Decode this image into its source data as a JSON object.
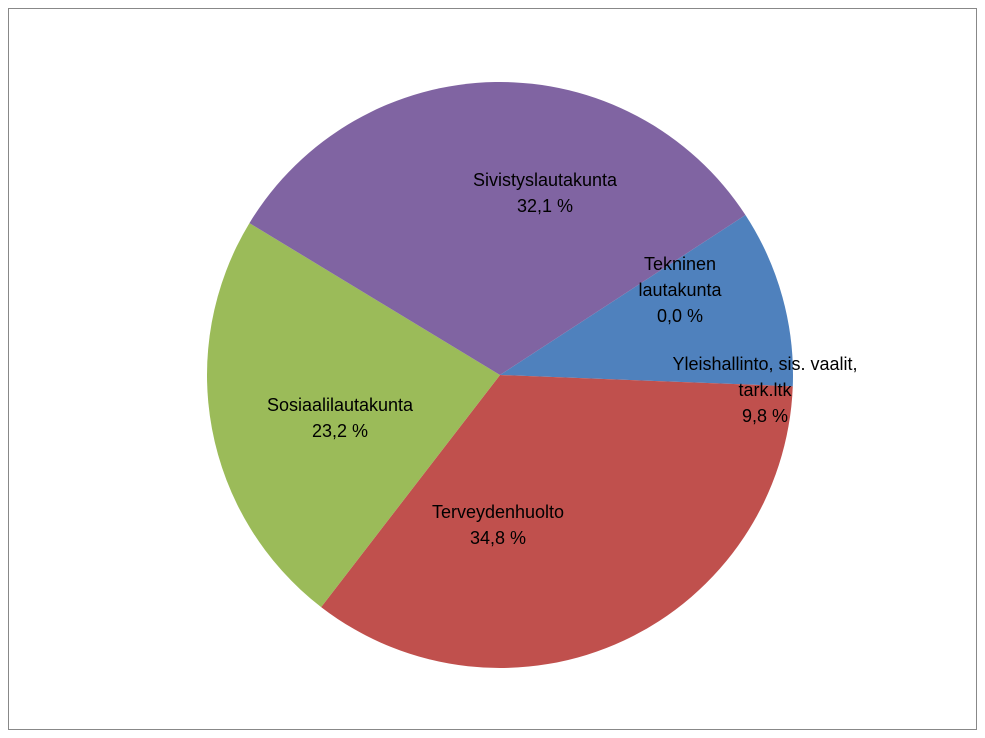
{
  "chart_data": {
    "type": "pie",
    "categories": [
      "Yleishallinto, sis. vaalit, tark.ltk",
      "Terveydenhuolto",
      "Sosiaalilautakunta",
      "Sivistyslautakunta",
      "Tekninen lautakunta"
    ],
    "values": [
      9.8,
      34.8,
      23.2,
      32.1,
      0.0
    ],
    "value_labels": [
      "9,8 %",
      "34,8 %",
      "23,2 %",
      "32,1 %",
      "0,0 %"
    ],
    "colors": [
      "#4f81bd",
      "#c0504d",
      "#9bbb59",
      "#8064a2",
      "#4bacc6"
    ]
  }
}
